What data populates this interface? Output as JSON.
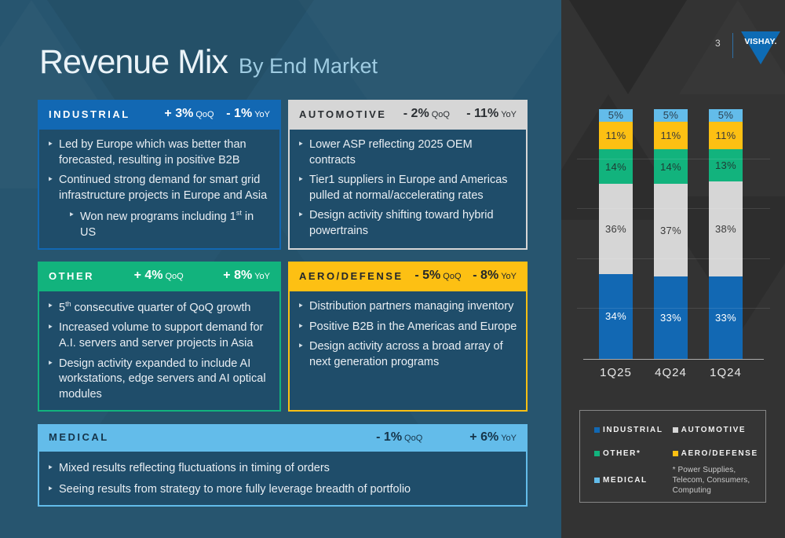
{
  "slide": {
    "page_number": "3",
    "title": "Revenue Mix",
    "subtitle": "By End Market",
    "logo_text": "VISHAY.",
    "accent_blue": "#0E6BB4",
    "left_bg": "#27556F",
    "right_bg": "#333333"
  },
  "boxes": {
    "industrial": {
      "label": "INDUSTRIAL",
      "qoq_value": "+ 3%",
      "qoq_label": "QoQ",
      "yoy_value": "- 1%",
      "yoy_label": "YoY",
      "color": "#1268B3",
      "bullet1": "Led by Europe which was better than forecasted, resulting in positive  B2B",
      "bullet2": "Continued strong demand for smart grid infrastructure projects in Europe and Asia",
      "sub_bullet_pre": "Won new programs including 1",
      "sub_bullet_sup": "st",
      "sub_bullet_post": " in US"
    },
    "automotive": {
      "label": "AUTOMOTIVE",
      "qoq_value": "- 2%",
      "qoq_label": "QoQ",
      "yoy_value": "- 11%",
      "yoy_label": "YoY",
      "color": "#D6D6D6",
      "bullet1": "Lower ASP reflecting 2025 OEM contracts",
      "bullet2": "Tier1 suppliers in Europe and Americas pulled at normal/accelerating rates",
      "bullet3": "Design activity shifting toward hybrid powertrains"
    },
    "other": {
      "label": "OTHER",
      "qoq_value": "+ 4%",
      "qoq_label": "QoQ",
      "yoy_value": "+ 8%",
      "yoy_label": "YoY",
      "color": "#12B37D",
      "bullet1_pre": "5",
      "bullet1_sup": "th",
      "bullet1_post": " consecutive quarter of QoQ growth",
      "bullet2": "Increased volume to support demand for A.I. servers and server projects in Asia",
      "bullet3": "Design activity expanded to include AI workstations, edge servers and AI optical modules"
    },
    "aero": {
      "label": "AERO/DEFENSE",
      "qoq_value": "- 5%",
      "qoq_label": "QoQ",
      "yoy_value": "- 8%",
      "yoy_label": "YoY",
      "color": "#FDC013",
      "bullet1": "Distribution partners managing inventory",
      "bullet2": "Positive B2B in the Americas and Europe",
      "bullet3": "Design activity across a broad array of next generation programs"
    },
    "medical": {
      "label": "MEDICAL",
      "qoq_value": "- 1%",
      "qoq_label": "QoQ",
      "yoy_value": "+ 6%",
      "yoy_label": "YoY",
      "color": "#63BCEA",
      "bullet1": "Mixed results reflecting fluctuations in timing of orders",
      "bullet2": "Seeing results from strategy to more fully leverage breadth of portfolio"
    }
  },
  "chart_data": {
    "type": "bar",
    "stacked": true,
    "title": "",
    "xlabel": "",
    "ylabel": "",
    "categories": [
      "1Q25",
      "4Q24",
      "1Q24"
    ],
    "series": [
      {
        "name": "INDUSTRIAL",
        "color": "#1268B3",
        "label_color": "#FFFFFF",
        "values": [
          34,
          33,
          33
        ]
      },
      {
        "name": "AUTOMOTIVE",
        "color": "#D6D6D6",
        "label_color": "#3A3A3A",
        "values": [
          36,
          37,
          38
        ]
      },
      {
        "name": "OTHER*",
        "color": "#12B37D",
        "label_color": "#1F3C35",
        "values": [
          14,
          14,
          13
        ]
      },
      {
        "name": "AERO/DEFENSE",
        "color": "#FDC013",
        "label_color": "#3A3A3A",
        "values": [
          11,
          11,
          11
        ]
      },
      {
        "name": "MEDICAL",
        "color": "#63BCEA",
        "label_color": "#2B4150",
        "values": [
          5,
          5,
          5
        ]
      }
    ],
    "ylim": [
      0,
      100
    ],
    "grid": true,
    "gridline_step": 20,
    "legend_position": "bottom-right"
  },
  "legend": {
    "items": [
      {
        "label": "INDUSTRIAL",
        "color": "#1268B3"
      },
      {
        "label": "AUTOMOTIVE",
        "color": "#D6D6D6"
      },
      {
        "label": "OTHER*",
        "color": "#12B37D"
      },
      {
        "label": "AERO/DEFENSE",
        "color": "#FDC013"
      },
      {
        "label": "MEDICAL",
        "color": "#63BCEA"
      }
    ],
    "footnote": "* Power Supplies, Telecom, Consumers, Computing"
  }
}
